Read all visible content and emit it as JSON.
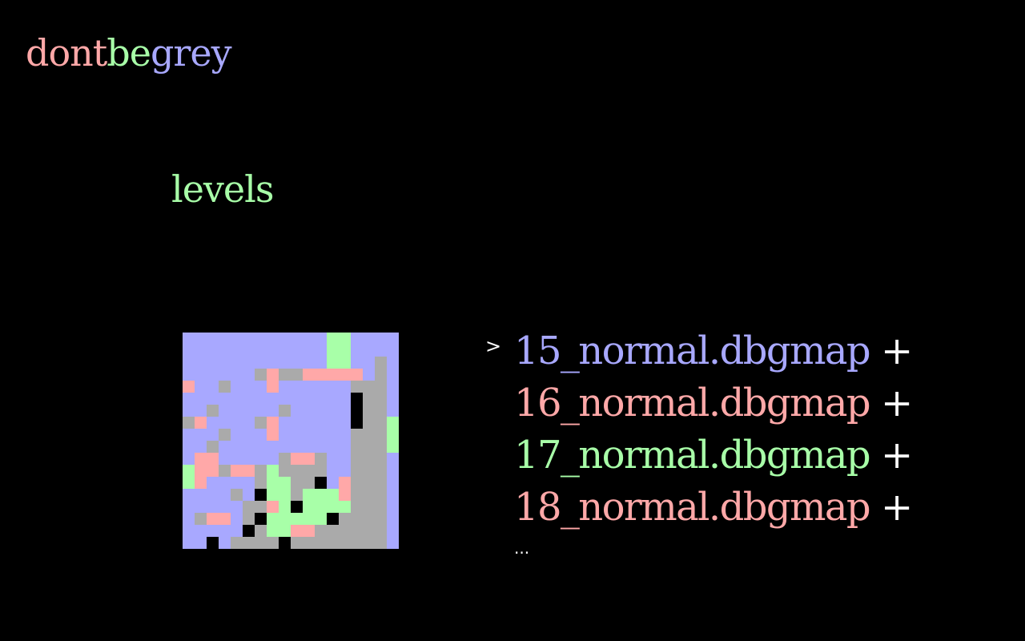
{
  "colors": {
    "blue": "#a8a8ff",
    "red": "#ffa8a8",
    "green": "#a8ffa8",
    "grey": "#aaaaaa",
    "black": "#000000",
    "white": "#ffffff"
  },
  "title": {
    "parts": [
      {
        "text": "dont",
        "color": "#ffa8a8"
      },
      {
        "text": "be",
        "color": "#a8ffa8"
      },
      {
        "text": "grey",
        "color": "#a8a8ff"
      }
    ]
  },
  "heading": "levels",
  "preview_map": {
    "legend": {
      "B": "blue",
      "R": "red",
      "G": "green",
      "X": "grey",
      "K": "black"
    },
    "rows": [
      "BBBBBBBBBBBBGGBBBB",
      "BBBBBBBBBBBBGGBBBB",
      "BBBBBBBBBBBBGGBBXB",
      "BBBBBBXRXXRRRRRBXB",
      "RBBXBBBRBBBBBBXXXB",
      "BBBBBBBBBBBBBBKXXB",
      "BBXBBBBBXBBBBBKXXB",
      "XRBBBBXRBBBBBBKXXG",
      "BBBXBBBRBBBBBBXXXG",
      "BBXBBBBBBBBBBBXXXG",
      "BRRBBBBBXRRXBBXXXB",
      "GRRXRRXGXXXXBBXXXB",
      "GRBBBBXGGXXKBRXXXB",
      "BBBBXBKGGXGGGRXXXB",
      "BBBBBXXRGKGGGGXXXB",
      "BXRRBXKGGGGGKXXXXB",
      "BBBBBKXGGRRXXXXXXB",
      "BBKBXXXXKXXXXXXXXB"
    ]
  },
  "levels": {
    "cursor": ">",
    "items": [
      {
        "name": "15_normal.dbgmap",
        "suffix": "+",
        "color": "#a8a8ff",
        "selected": true
      },
      {
        "name": "16_normal.dbgmap",
        "suffix": "+",
        "color": "#ffa8a8",
        "selected": false
      },
      {
        "name": "17_normal.dbgmap",
        "suffix": "+",
        "color": "#a8ffa8",
        "selected": false
      },
      {
        "name": "18_normal.dbgmap",
        "suffix": "+",
        "color": "#ffa8a8",
        "selected": false
      }
    ],
    "more": "..."
  }
}
